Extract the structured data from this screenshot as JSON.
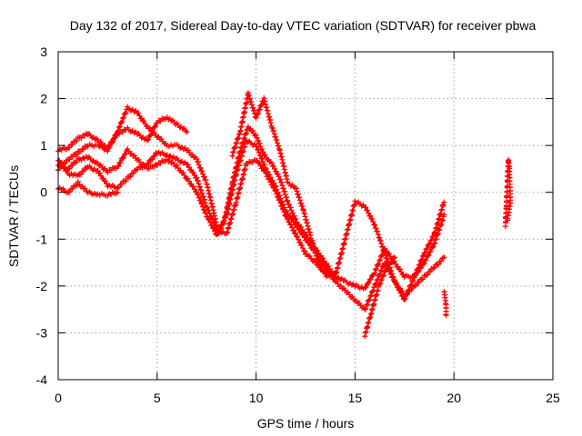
{
  "chart_data": {
    "type": "scatter",
    "title": "Day 132 of 2017, Sidereal Day-to-day VTEC variation (SDTVAR) for receiver pbwa",
    "xlabel": "GPS time / hours",
    "ylabel": "SDTVAR / TECUs",
    "xlim": [
      0,
      25
    ],
    "ylim": [
      -4,
      3
    ],
    "xticks": [
      0,
      5,
      10,
      15,
      20,
      25
    ],
    "yticks": [
      -4,
      -3,
      -2,
      -1,
      0,
      1,
      2,
      3
    ],
    "grid": true,
    "marker": "+",
    "series": [
      {
        "name": "SDTVAR",
        "color": "#ff0000",
        "segments": [
          [
            [
              0,
              0.9
            ],
            [
              0.5,
              0.95
            ],
            [
              1,
              1.15
            ],
            [
              1.5,
              1.25
            ],
            [
              2,
              1.1
            ],
            [
              2.5,
              0.95
            ],
            [
              3,
              1.25
            ],
            [
              3.5,
              1.35
            ],
            [
              4,
              1.25
            ],
            [
              4.5,
              1.1
            ],
            [
              5,
              1.5
            ],
            [
              5.5,
              1.6
            ],
            [
              6,
              1.45
            ],
            [
              6.5,
              1.3
            ]
          ],
          [
            [
              0,
              0.5
            ],
            [
              0.5,
              0.7
            ],
            [
              1,
              0.85
            ],
            [
              1.5,
              1.0
            ],
            [
              2,
              1.0
            ],
            [
              2.5,
              0.9
            ],
            [
              3,
              1.3
            ],
            [
              3.5,
              1.8
            ],
            [
              4,
              1.7
            ],
            [
              4.5,
              1.4
            ],
            [
              5,
              1.2
            ],
            [
              5.5,
              1.0
            ],
            [
              6,
              1.0
            ],
            [
              6.5,
              0.9
            ],
            [
              7,
              0.7
            ],
            [
              7.5,
              0.2
            ],
            [
              7.9,
              -0.5
            ],
            [
              8.1,
              -0.9
            ],
            [
              8.4,
              -0.6
            ],
            [
              8.8,
              0.2
            ],
            [
              9.2,
              0.9
            ],
            [
              9.6,
              1.4
            ],
            [
              10,
              1.2
            ],
            [
              10.4,
              0.8
            ],
            [
              10.8,
              0.6
            ],
            [
              11.2,
              0.3
            ],
            [
              11.6,
              -0.2
            ],
            [
              12,
              -0.6
            ],
            [
              12.5,
              -0.9
            ],
            [
              13,
              -1.2
            ],
            [
              13.5,
              -1.5
            ],
            [
              14,
              -1.8
            ],
            [
              14.5,
              -1.9
            ],
            [
              15,
              -2.0
            ],
            [
              15.5,
              -2.05
            ],
            [
              16,
              -1.7
            ],
            [
              16.5,
              -1.2
            ],
            [
              17,
              -1.5
            ],
            [
              17.5,
              -1.8
            ],
            [
              18,
              -1.8
            ],
            [
              18.5,
              -1.5
            ],
            [
              19,
              -1.1
            ],
            [
              19.5,
              -0.5
            ]
          ],
          [
            [
              0,
              0.6
            ],
            [
              0.5,
              0.5
            ],
            [
              1,
              0.7
            ],
            [
              1.5,
              0.75
            ],
            [
              2,
              0.6
            ],
            [
              2.5,
              0.45
            ],
            [
              3,
              0.55
            ],
            [
              3.5,
              0.9
            ],
            [
              4,
              0.7
            ],
            [
              4.5,
              0.5
            ],
            [
              5,
              0.6
            ],
            [
              5.5,
              0.7
            ],
            [
              6,
              0.55
            ],
            [
              6.5,
              0.3
            ],
            [
              7,
              0
            ],
            [
              7.5,
              -0.5
            ],
            [
              8,
              -0.9
            ],
            [
              8.5,
              -0.5
            ],
            [
              9,
              0.4
            ],
            [
              9.5,
              1.1
            ],
            [
              10,
              1.0
            ],
            [
              10.5,
              0.5
            ],
            [
              11,
              0.1
            ],
            [
              11.5,
              -0.4
            ],
            [
              12,
              -0.7
            ],
            [
              12.5,
              -1.0
            ],
            [
              13,
              -1.3
            ],
            [
              13.5,
              -1.6
            ],
            [
              14,
              -1.9
            ],
            [
              14.5,
              -2.1
            ],
            [
              15,
              -2.3
            ],
            [
              15.5,
              -2.5
            ],
            [
              16,
              -2.0
            ],
            [
              16.5,
              -1.5
            ],
            [
              17,
              -1.9
            ],
            [
              17.5,
              -2.2
            ],
            [
              18,
              -2.0
            ],
            [
              18.5,
              -1.8
            ],
            [
              19,
              -1.6
            ],
            [
              19.5,
              -1.4
            ]
          ],
          [
            [
              0,
              0.7
            ],
            [
              0.5,
              0.4
            ],
            [
              1,
              0.35
            ],
            [
              1.5,
              0.55
            ],
            [
              2,
              0.45
            ],
            [
              2.5,
              0.15
            ],
            [
              3,
              0.1
            ],
            [
              3.5,
              0.3
            ],
            [
              4,
              0.5
            ],
            [
              4.5,
              0.6
            ],
            [
              5,
              0.85
            ],
            [
              5.5,
              0.8
            ],
            [
              6,
              0.7
            ],
            [
              6.5,
              0.6
            ],
            [
              7,
              0.3
            ],
            [
              7.5,
              -0.3
            ],
            [
              8,
              -0.8
            ],
            [
              8.5,
              -0.9
            ],
            [
              9,
              -0.2
            ],
            [
              9.5,
              0.6
            ],
            [
              10,
              0.7
            ],
            [
              10.5,
              0.4
            ],
            [
              11,
              0
            ],
            [
              11.5,
              -0.5
            ],
            [
              12,
              -0.9
            ],
            [
              12.5,
              -1.3
            ],
            [
              13,
              -1.5
            ],
            [
              13.5,
              -1.7
            ],
            [
              14,
              -1.8
            ],
            [
              15,
              -0.2
            ],
            [
              15.5,
              -0.3
            ],
            [
              16,
              -0.7
            ],
            [
              16.5,
              -1.3
            ],
            [
              17,
              -1.9
            ],
            [
              17.5,
              -2.3
            ],
            [
              18,
              -1.8
            ],
            [
              18.5,
              -1.3
            ],
            [
              19,
              -0.9
            ],
            [
              19.5,
              -0.2
            ]
          ],
          [
            [
              0,
              0.1
            ],
            [
              0.5,
              0.0
            ],
            [
              1,
              0.2
            ],
            [
              1.5,
              0.0
            ],
            [
              2,
              -0.05
            ],
            [
              2.5,
              -0.05
            ],
            [
              3,
              0.0
            ]
          ],
          [
            [
              8.8,
              0.8
            ],
            [
              9.2,
              1.3
            ],
            [
              9.6,
              2.1
            ],
            [
              10,
              1.6
            ],
            [
              10.4,
              2.0
            ],
            [
              10.8,
              1.4
            ],
            [
              11.2,
              0.9
            ],
            [
              11.6,
              0.2
            ],
            [
              12,
              0.1
            ],
            [
              12.4,
              -0.4
            ],
            [
              12.8,
              -1.0
            ],
            [
              13.2,
              -1.6
            ],
            [
              13.6,
              -1.8
            ],
            [
              14,
              -1.7
            ]
          ],
          [
            [
              15.5,
              -3.05
            ],
            [
              15.8,
              -2.6
            ],
            [
              16.2,
              -2.0
            ],
            [
              16.6,
              -1.6
            ],
            [
              17,
              -1.4
            ]
          ],
          [
            [
              19.5,
              -2.1
            ],
            [
              19.6,
              -2.4
            ],
            [
              19.6,
              -2.65
            ]
          ],
          [
            [
              22.6,
              -0.7
            ],
            [
              22.65,
              -0.3
            ],
            [
              22.7,
              0.2
            ],
            [
              22.75,
              0.7
            ],
            [
              22.8,
              0.5
            ],
            [
              22.85,
              -0.2
            ],
            [
              22.7,
              -0.6
            ]
          ]
        ]
      }
    ]
  }
}
